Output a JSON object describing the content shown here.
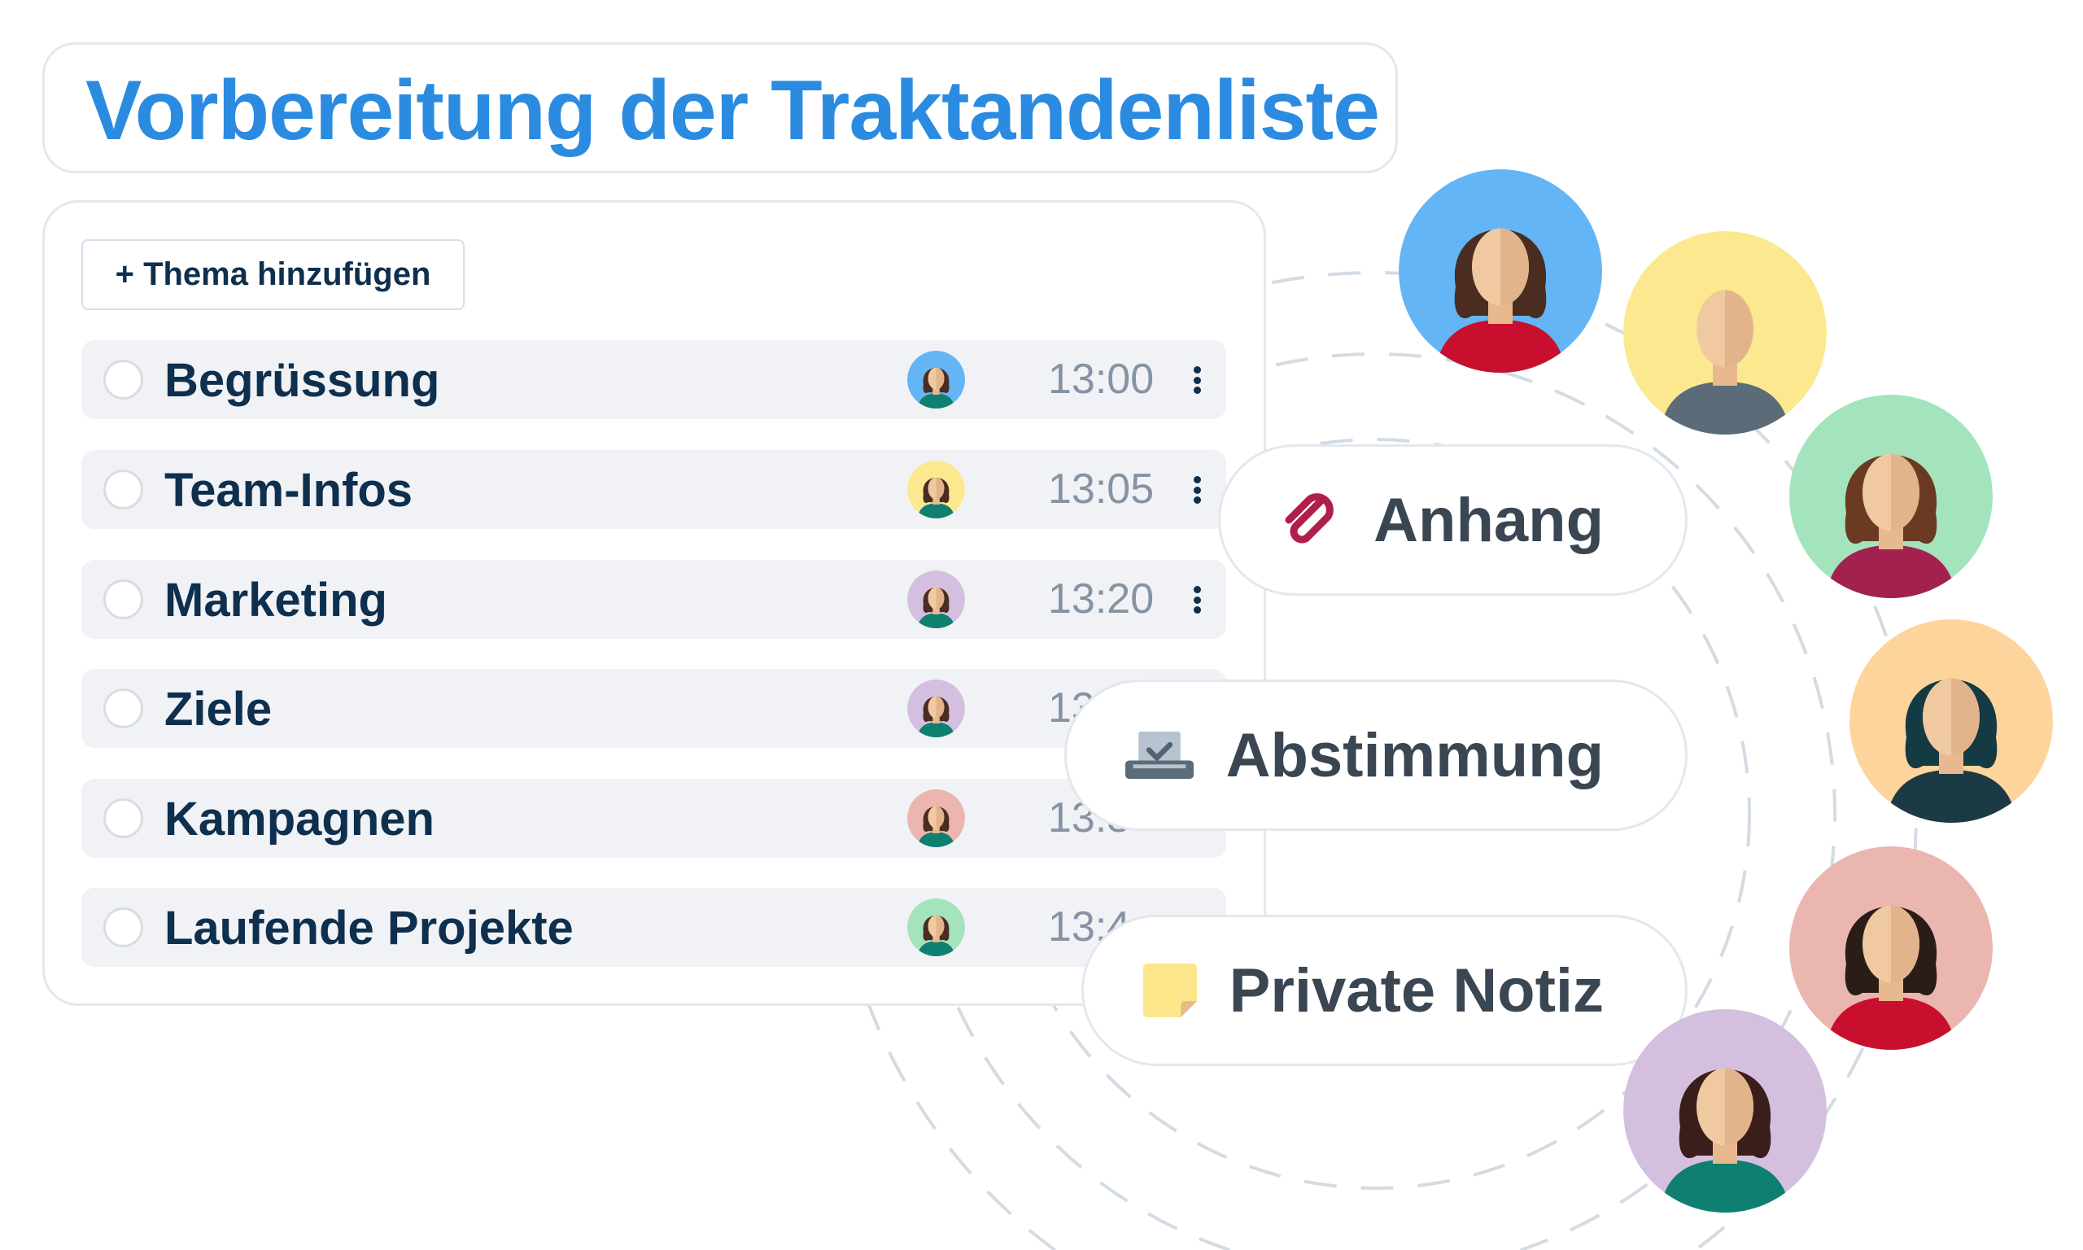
{
  "title": "Vorbereitung der Traktandenliste",
  "add_topic_button": {
    "icon": "plus-icon",
    "label": "+ Thema hinzufügen"
  },
  "agenda_items": [
    {
      "label": "Begrüssung",
      "time": "13:00",
      "avatar_color": "#64b5f6",
      "has_menu": true
    },
    {
      "label": "Team-Infos",
      "time": "13:05",
      "avatar_color": "#fce98f",
      "has_menu": true
    },
    {
      "label": "Marketing",
      "time": "13:20",
      "avatar_color": "#d4bfdf",
      "has_menu": true
    },
    {
      "label": "Ziele",
      "time": "13:",
      "avatar_color": "#d4bfdf",
      "has_menu": false
    },
    {
      "label": "Kampagnen",
      "time": "13:3",
      "avatar_color": "#ebb5b0",
      "has_menu": false
    },
    {
      "label": "Laufende Projekte",
      "time": "13:4",
      "avatar_color": "#a3e4bd",
      "has_menu": false
    }
  ],
  "features": [
    {
      "label": "Anhang",
      "icon": "paperclip-icon"
    },
    {
      "label": "Abstimmung",
      "icon": "ballot-box-icon"
    },
    {
      "label": "Private Notiz",
      "icon": "sticky-note-icon"
    }
  ],
  "participants": [
    {
      "bg": "#64b5f6",
      "hair": "#4a2c20",
      "shirt": "#c8102e"
    },
    {
      "bg": "#fce98f",
      "hair": "none",
      "shirt": "#5b6b78"
    },
    {
      "bg": "#a3e4bd",
      "hair": "#6b3a22",
      "shirt": "#a3214f"
    },
    {
      "bg": "#fdd59c",
      "hair": "#143a44",
      "shirt": "#1c3a44"
    },
    {
      "bg": "#ebb5b0",
      "hair": "#2a1d18",
      "shirt": "#c8102e"
    },
    {
      "bg": "#d4bfdf",
      "hair": "#3a1e1a",
      "shirt": "#0f7f70"
    }
  ],
  "colors": {
    "accent": "#2b8be0",
    "text_dark": "#0e2f4d",
    "row_bg": "#f0f2f6"
  }
}
